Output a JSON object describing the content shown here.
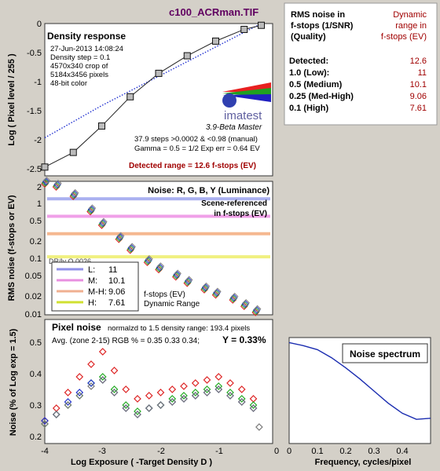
{
  "page_title": "c100_ACRman.TIF",
  "info_table": {
    "header_left": [
      "RMS noise in",
      "f-stops (1/SNR)",
      "(Quality)"
    ],
    "header_right": [
      "Dynamic",
      "range in",
      "f-stops (EV)"
    ],
    "rows": [
      {
        "label": "Detected:",
        "value": "12.6"
      },
      {
        "label": "1.0  (Low):",
        "value": "11"
      },
      {
        "label": "0.5  (Medium)",
        "value": "10.1"
      },
      {
        "label": "0.25 (Med-High)",
        "value": "9.06"
      },
      {
        "label": "0.1  (High)",
        "value": "7.61"
      }
    ]
  },
  "chart_data": [
    {
      "type": "line",
      "title": "Density response",
      "info_lines": [
        "27-Jun-2013 14:08:24",
        "Density step = 0.1",
        "4570x340 crop of",
        "5184x3456 pixels",
        "48-bit color"
      ],
      "logo": "imatest",
      "logo_sub": "3.9-Beta  Master",
      "notes": [
        "37.9 steps >0.0002 & <0.98 (manual)",
        "Gamma = 0.5 = 1/2  Exp err = 0.64 EV"
      ],
      "detected_label": "Detected range = 12.6 f-stops (EV)",
      "ylabel": "Log ( Pixel level / 255 )",
      "ylim": [
        -2.6,
        0
      ],
      "xlim": [
        -4,
        0
      ],
      "yticks": [
        "0",
        "-0.5",
        "-1",
        "-1.5",
        "-2",
        "-2.5"
      ],
      "series": [
        {
          "x": [
            -4,
            -3.5,
            -3,
            -2.5,
            -2,
            -1.5,
            -1,
            -0.5,
            -0.2
          ],
          "values": [
            -2.45,
            -2.2,
            -1.75,
            -1.25,
            -0.85,
            -0.55,
            -0.3,
            -0.1,
            -0.03
          ]
        },
        {
          "x": [
            -4,
            -3,
            -2,
            -1,
            -0.2
          ],
          "values": [
            -1.95,
            -1.4,
            -0.9,
            -0.4,
            0
          ]
        }
      ]
    },
    {
      "type": "line",
      "title": "Noise: R, G, B, Y (Luminance)",
      "subtitle": [
        "Scene-referenced",
        "in f-stops (EV)"
      ],
      "ylabel": "RMS noise (f-stops or EV)",
      "yscale": "log",
      "ylim": [
        0.01,
        2
      ],
      "yticks": [
        "2",
        "1",
        "0.5",
        "0.2",
        "0.1",
        "0.05",
        "0.02",
        "0.01"
      ],
      "partial_label": "DR/ly Q.0026",
      "legend": [
        {
          "name": "L:",
          "value": "11",
          "color": "#9090e8"
        },
        {
          "name": "M:",
          "value": "10.1",
          "color": "#e890e0"
        },
        {
          "name": "M-H:",
          "value": "9.06",
          "color": "#f0b090"
        },
        {
          "name": "H:",
          "value": "7.61",
          "color": "#d0e030"
        }
      ],
      "legend_note": [
        "f-stops (EV)",
        "Dynamic Range"
      ],
      "hlines": [
        {
          "y": 1,
          "color": "#aab0f0"
        },
        {
          "y": 0.5,
          "color": "#f0a0e8"
        },
        {
          "y": 0.25,
          "color": "#f5b890"
        },
        {
          "y": 0.1,
          "color": "#f0f080"
        }
      ],
      "x": [
        -4,
        -3.8,
        -3.5,
        -3.2,
        -3,
        -2.7,
        -2.5,
        -2.2,
        -2,
        -1.7,
        -1.5,
        -1.2,
        -1,
        -0.7,
        -0.5,
        -0.3
      ],
      "values": [
        1.8,
        1.6,
        1.1,
        0.6,
        0.35,
        0.2,
        0.13,
        0.08,
        0.06,
        0.045,
        0.035,
        0.027,
        0.022,
        0.018,
        0.014,
        0.011
      ]
    },
    {
      "type": "scatter",
      "title": "Pixel noise",
      "note": "normalzd to 1.5 density range: 193.4 pixels",
      "avg_text": "Avg. (zone 2-15) RGB % = 0.35  0.33  0.34;",
      "y_text": "Y = 0.33%",
      "ylabel": "Noise (% of Log exp = 1.5)",
      "xlabel": "Log Exposure ( -Target Density D )",
      "xlim": [
        -4,
        -0.2
      ],
      "ylim": [
        0.2,
        0.5
      ],
      "xticks": [
        "-4",
        "-3",
        "-2",
        "-1",
        "0"
      ],
      "yticks": [
        "0.5",
        "0.4",
        "0.3",
        "0.2"
      ],
      "series": [
        {
          "name": "R",
          "color": "#dd2222",
          "x": [
            -4,
            -3.8,
            -3.6,
            -3.4,
            -3.2,
            -3,
            -2.8,
            -2.6,
            -2.4,
            -2.2,
            -2,
            -1.8,
            -1.6,
            -1.4,
            -1.2,
            -1,
            -0.8,
            -0.6,
            -0.4
          ],
          "values": [
            0.26,
            0.3,
            0.35,
            0.4,
            0.44,
            0.48,
            0.42,
            0.36,
            0.33,
            0.34,
            0.35,
            0.36,
            0.37,
            0.38,
            0.39,
            0.4,
            0.38,
            0.36,
            0.33
          ]
        },
        {
          "name": "G",
          "color": "#22aa22",
          "x": [
            -4,
            -3.8,
            -3.6,
            -3.4,
            -3.2,
            -3,
            -2.8,
            -2.6,
            -2.4,
            -2.2,
            -2,
            -1.8,
            -1.6,
            -1.4,
            -1.2,
            -1,
            -0.8,
            -0.6,
            -0.4
          ],
          "values": [
            0.25,
            0.28,
            0.31,
            0.34,
            0.38,
            0.4,
            0.36,
            0.31,
            0.29,
            0.3,
            0.31,
            0.33,
            0.34,
            0.35,
            0.36,
            0.37,
            0.35,
            0.33,
            0.31
          ]
        },
        {
          "name": "B",
          "color": "#2233cc",
          "x": [
            -4,
            -3.8,
            -3.6,
            -3.4,
            -3.2,
            -3,
            -2.8,
            -2.6,
            -2.4,
            -2.2,
            -2,
            -1.8,
            -1.6,
            -1.4,
            -1.2,
            -1,
            -0.8,
            -0.6,
            -0.4
          ],
          "values": [
            0.26,
            0.28,
            0.32,
            0.35,
            0.38,
            0.39,
            0.35,
            0.3,
            0.28,
            0.3,
            0.31,
            0.32,
            0.33,
            0.34,
            0.35,
            0.36,
            0.34,
            0.32,
            0.3
          ]
        },
        {
          "name": "Y",
          "color": "#777777",
          "x": [
            -4,
            -3.8,
            -3.6,
            -3.4,
            -3.2,
            -3,
            -2.8,
            -2.6,
            -2.4,
            -2.2,
            -2,
            -1.8,
            -1.6,
            -1.4,
            -1.2,
            -1,
            -0.8,
            -0.6,
            -0.4,
            -0.3
          ],
          "values": [
            0.25,
            0.28,
            0.31,
            0.34,
            0.37,
            0.39,
            0.35,
            0.3,
            0.28,
            0.3,
            0.31,
            0.32,
            0.33,
            0.34,
            0.35,
            0.36,
            0.34,
            0.32,
            0.3,
            0.24
          ]
        }
      ]
    },
    {
      "type": "line",
      "title": "Noise spectrum",
      "xlabel": "Frequency, cycles/pixel",
      "xlim": [
        0,
        0.5
      ],
      "xticks": [
        "0",
        "0.1",
        "0.2",
        "0.3",
        "0.4"
      ],
      "x": [
        0,
        0.05,
        0.1,
        0.15,
        0.2,
        0.25,
        0.3,
        0.35,
        0.4,
        0.45,
        0.5
      ],
      "values": [
        1.0,
        0.97,
        0.93,
        0.85,
        0.75,
        0.64,
        0.52,
        0.4,
        0.3,
        0.24,
        0.25
      ]
    }
  ]
}
